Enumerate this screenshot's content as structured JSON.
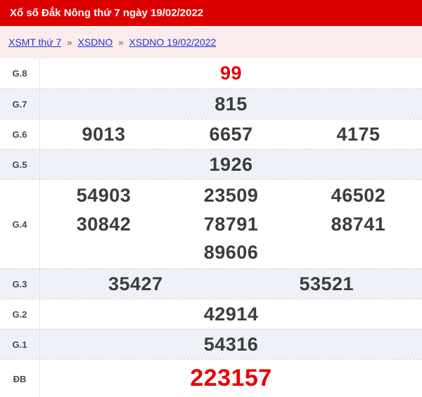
{
  "header": {
    "title": "Xổ số Đắk Nông thứ 7 ngày 19/02/2022"
  },
  "breadcrumb": {
    "separator": "»",
    "items": [
      {
        "label": "XSMT thứ 7"
      },
      {
        "label": "XSDNO"
      },
      {
        "label": "XSDNO 19/02/2022"
      }
    ]
  },
  "results": {
    "rows": [
      {
        "label": "G.8",
        "numbers": [
          "99"
        ],
        "highlight": true
      },
      {
        "label": "G.7",
        "numbers": [
          "815"
        ]
      },
      {
        "label": "G.6",
        "numbers": [
          "9013",
          "6657",
          "4175"
        ]
      },
      {
        "label": "G.5",
        "numbers": [
          "1926"
        ]
      },
      {
        "label": "G.4",
        "numbers": [
          "54903",
          "23509",
          "46502",
          "30842",
          "78791",
          "88741",
          "89606"
        ]
      },
      {
        "label": "G.3",
        "numbers": [
          "35427",
          "53521"
        ]
      },
      {
        "label": "G.2",
        "numbers": [
          "42914"
        ]
      },
      {
        "label": "G.1",
        "numbers": [
          "54316"
        ]
      },
      {
        "label": "ĐB",
        "numbers": [
          "223157"
        ],
        "highlight": true,
        "large": true
      }
    ]
  },
  "colors": {
    "title_bar_bg": "#dd0000",
    "title_text": "#ffffff",
    "breadcrumb_bg": "#fbecec",
    "link_blue": "#2336cc",
    "separator_red": "#9b4040",
    "row_alt_bg": "#eef1f8",
    "number_dark": "#3c3c3c",
    "number_red": "#e80000",
    "row_border": "#e6cfcf"
  }
}
